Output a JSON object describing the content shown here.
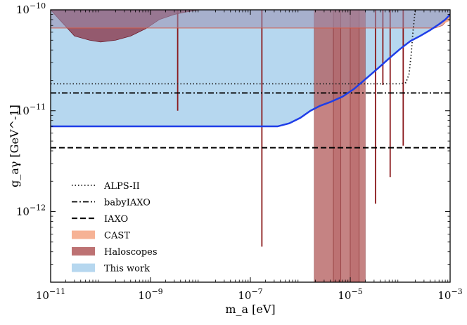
{
  "chart_data": {
    "type": "line",
    "xlabel": "m_a [eV]",
    "ylabel": "g_aγ [GeV^-1]",
    "xscale": "log",
    "yscale": "log",
    "xlim": [
      1e-11,
      0.001
    ],
    "ylim": [
      2e-13,
      1e-10
    ],
    "grid": false,
    "legend_position": "lower-left",
    "x_ticks": [
      {
        "value": 1e-11,
        "base": "10",
        "exp": "−11"
      },
      {
        "value": 1e-09,
        "base": "10",
        "exp": "−9"
      },
      {
        "value": 1e-07,
        "base": "10",
        "exp": "−7"
      },
      {
        "value": 1e-05,
        "base": "10",
        "exp": "−5"
      },
      {
        "value": 0.001,
        "base": "10",
        "exp": "−3"
      }
    ],
    "y_ticks": [
      {
        "value": 1e-12,
        "base": "10",
        "exp": "−12"
      },
      {
        "value": 1e-11,
        "base": "10",
        "exp": "−11"
      },
      {
        "value": 1e-10,
        "base": "10",
        "exp": "−10"
      }
    ],
    "series": [
      {
        "name": "ALPS-II",
        "style": "dotted",
        "color": "#222222",
        "x": [
          1e-11,
          0.0001,
          0.00013,
          0.00015,
          0.000165,
          0.00018,
          0.0002,
          0.00022
        ],
        "y": [
          1.85e-11,
          1.85e-11,
          1.9e-11,
          2.3e-11,
          3.5e-11,
          6e-11,
          1e-10,
          1.25e-10
        ]
      },
      {
        "name": "babyIAXO",
        "style": "dashdot",
        "color": "#000000",
        "x": [
          1e-11,
          0.001
        ],
        "y": [
          1.5e-11,
          1.5e-11
        ]
      },
      {
        "name": "IAXO",
        "style": "dashed",
        "color": "#000000",
        "x": [
          1e-11,
          0.001
        ],
        "y": [
          4.3e-12,
          4.3e-12
        ]
      },
      {
        "name": "CAST",
        "style": "fill",
        "color": "#f4a582",
        "x": [
          1e-11,
          0.0005,
          0.0007,
          0.0008,
          0.0009,
          0.001
        ],
        "y": [
          6.6e-11,
          6.6e-11,
          7e-11,
          7.5e-11,
          8.2e-11,
          9e-11
        ]
      },
      {
        "name": "Haloscopes",
        "style": "fill",
        "color": "#b2595a",
        "regions": [
          {
            "x0": 1.9e-06,
            "x1": 4.6e-06,
            "y": 2e-13
          },
          {
            "x0": 4.6e-06,
            "x1": 6.5e-06,
            "y": 2e-13
          },
          {
            "x0": 6.5e-06,
            "x1": 1e-05,
            "y": 2e-13
          },
          {
            "x0": 1e-05,
            "x1": 1.5e-05,
            "y": 2e-13
          },
          {
            "x0": 1.5e-05,
            "x1": 2e-05,
            "y": 2e-13
          }
        ],
        "spikes": [
          {
            "x": 3.5e-09,
            "y": 1e-11
          },
          {
            "x": 1.7e-07,
            "y": 4.5e-13
          },
          {
            "x": 3.2e-05,
            "y": 1.2e-12
          },
          {
            "x": 4.5e-05,
            "y": 1.8e-11
          },
          {
            "x": 6.3e-05,
            "y": 2.2e-12
          },
          {
            "x": 0.000115,
            "y": 4.5e-12
          }
        ],
        "top_band": {
          "x": [
            1e-11,
            3e-11,
            6e-11,
            1e-10,
            2e-10,
            4e-10,
            8e-10,
            1.5e-09,
            3e-09,
            5e-09,
            1e-08,
            3e-08,
            1e-07
          ],
          "y": [
            1e-10,
            5.5e-11,
            5e-11,
            4.8e-11,
            5e-11,
            5.5e-11,
            6.5e-11,
            8e-11,
            9e-11,
            9.5e-11,
            1e-10,
            1e-10,
            1e-10
          ]
        }
      },
      {
        "name": "This work",
        "style": "fill+line",
        "color": "#9ecae9",
        "line_color": "#1f3ee8",
        "x": [
          1e-11,
          2e-07,
          3.5e-07,
          6e-07,
          1e-06,
          1.6e-06,
          2.5e-06,
          4e-06,
          7e-06,
          1.2e-05,
          2e-05,
          3.5e-05,
          6e-05,
          0.0001,
          0.00016,
          0.00025,
          0.0004,
          0.0006,
          0.0008,
          0.001
        ],
        "y": [
          7e-12,
          7e-12,
          7e-12,
          7.5e-12,
          8.5e-12,
          1e-11,
          1.12e-11,
          1.22e-11,
          1.38e-11,
          1.65e-11,
          2.05e-11,
          2.6e-11,
          3.3e-11,
          4.1e-11,
          4.9e-11,
          5.5e-11,
          6.3e-11,
          7.2e-11,
          8e-11,
          9e-11
        ]
      }
    ]
  }
}
